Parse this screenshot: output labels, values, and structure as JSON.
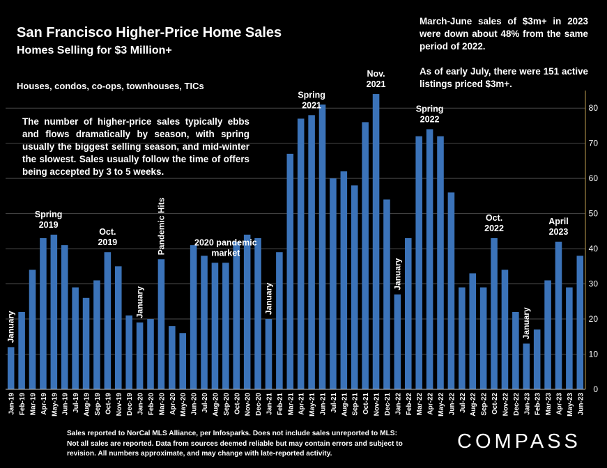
{
  "header": {
    "title": "San Francisco Higher-Price Home Sales",
    "subtitle": "Homes Selling for $3 Million+",
    "types": "Houses, condos, co-ops, townhouses, TICs"
  },
  "notes": {
    "right_1": "March-June sales of $3m+ in 2023 were down about 48% from the same period of 2022.",
    "right_2": "As of early July, there were 151 active listings priced $3m+.",
    "left": "The number of higher-price sales typically ebbs and flows dramatically by season, with spring usually the biggest selling season, and mid-winter the slowest. Sales usually follow the time of offers being accepted by 3 to 5 weeks."
  },
  "footer": {
    "source": "Sales reported to NorCal MLS Alliance, per Infosparks. Does not include sales unreported to MLS: Not all sales are reported. Data from sources deemed reliable but may contain errors and subject to revision.  All numbers approximate, and may change with late-reported activity.",
    "logo": "COMPASS"
  },
  "colors": {
    "bar": "#3b73b9",
    "background": "#000000",
    "text": "#ffffff",
    "grid": "#4a4a4a"
  },
  "chart_data": {
    "type": "bar",
    "categories": [
      "Jan-19",
      "Feb-19",
      "Mar-19",
      "Apr-19",
      "May-19",
      "Jun-19",
      "Jul-19",
      "Aug-19",
      "Sep-19",
      "Oct-19",
      "Nov-19",
      "Dec-19",
      "Jan-20",
      "Feb-20",
      "Mar-20",
      "Apr-20",
      "May-20",
      "Jun-20",
      "Jul-20",
      "Aug-20",
      "Sep-20",
      "Oct-20",
      "Nov-20",
      "Dec-20",
      "Jan-21",
      "Feb-21",
      "Mar-21",
      "Apr-21",
      "May-21",
      "Jun-21",
      "Jul-21",
      "Aug-21",
      "Sep-21",
      "Oct-21",
      "Nov-21",
      "Dec-21",
      "Jan-22",
      "Feb-22",
      "Mar-22",
      "Apr-22",
      "May-22",
      "Jun-22",
      "Jul-22",
      "Aug-22",
      "Sep-22",
      "Oct-22",
      "Nov-22",
      "Dec-22",
      "Jan-23",
      "Feb-23",
      "Mar-23",
      "Apr-23",
      "May-23",
      "Jun-23"
    ],
    "values": [
      12,
      22,
      34,
      43,
      44,
      41,
      29,
      26,
      31,
      39,
      35,
      21,
      19,
      20,
      37,
      18,
      16,
      41,
      38,
      36,
      36,
      42,
      44,
      43,
      20,
      39,
      67,
      77,
      78,
      81,
      60,
      62,
      58,
      76,
      84,
      54,
      27,
      43,
      72,
      74,
      72,
      56,
      29,
      33,
      29,
      43,
      34,
      22,
      13,
      17,
      31,
      42,
      29,
      38
    ],
    "ylim": [
      0,
      85
    ],
    "yticks": [
      0,
      10,
      20,
      30,
      40,
      50,
      60,
      70,
      80
    ],
    "grid": true,
    "annotations": [
      {
        "label": "January",
        "index": 0,
        "vertical": true
      },
      {
        "label": "Spring 2019",
        "index": 3.5,
        "vertical": false
      },
      {
        "label": "Oct. 2019",
        "index": 9,
        "vertical": false
      },
      {
        "label": "January",
        "index": 12,
        "vertical": true
      },
      {
        "label": "Pandemic Hits",
        "index": 14,
        "vertical": true
      },
      {
        "label": "2020 pandemic market",
        "index": 20,
        "vertical": false
      },
      {
        "label": "January",
        "index": 24,
        "vertical": true
      },
      {
        "label": "Spring 2021",
        "index": 28,
        "vertical": false
      },
      {
        "label": "Nov. 2021",
        "index": 34,
        "vertical": false
      },
      {
        "label": "January",
        "index": 36,
        "vertical": true
      },
      {
        "label": "Spring 2022",
        "index": 39,
        "vertical": false
      },
      {
        "label": "Oct. 2022",
        "index": 45,
        "vertical": false
      },
      {
        "label": "January",
        "index": 48,
        "vertical": true
      },
      {
        "label": "April 2023",
        "index": 51,
        "vertical": false
      }
    ]
  }
}
